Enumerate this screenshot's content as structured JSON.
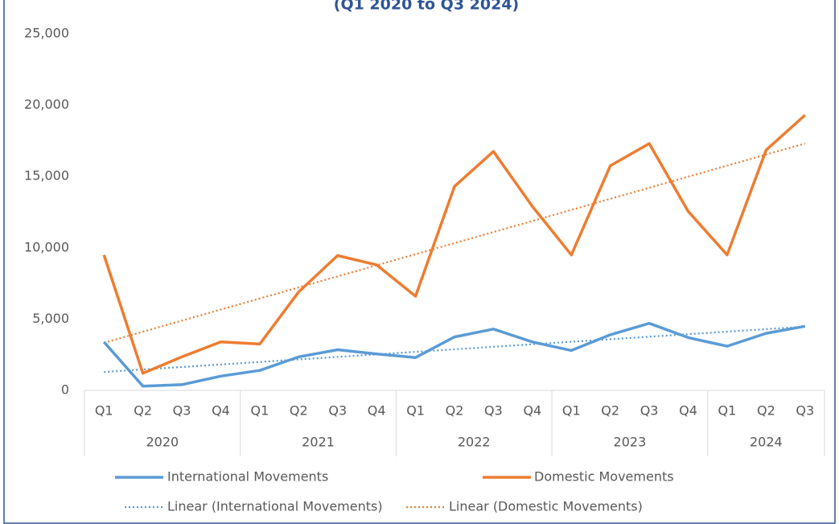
{
  "chart_data": {
    "type": "line",
    "title": "(Q1 2020 to Q3 2024)",
    "categories": [
      "Q1",
      "Q2",
      "Q3",
      "Q4",
      "Q1",
      "Q2",
      "Q3",
      "Q4",
      "Q1",
      "Q2",
      "Q3",
      "Q4",
      "Q1",
      "Q2",
      "Q3",
      "Q4",
      "Q1",
      "Q2",
      "Q3"
    ],
    "groups": [
      {
        "label": "2020",
        "span": 4
      },
      {
        "label": "2021",
        "span": 4
      },
      {
        "label": "2022",
        "span": 4
      },
      {
        "label": "2023",
        "span": 4
      },
      {
        "label": "2024",
        "span": 3
      }
    ],
    "series": [
      {
        "name": "International Movements",
        "color": "#5b9bd5",
        "values": [
          3400,
          300,
          400,
          1000,
          1400,
          2350,
          2850,
          2550,
          2300,
          3750,
          4300,
          3400,
          2800,
          3900,
          4700,
          3700,
          3100,
          4000,
          4500
        ],
        "trendline": {
          "name": "Linear (International Movements)",
          "style": "dotted"
        }
      },
      {
        "name": "Domestic Movements",
        "color": "#ed7d31",
        "values": [
          9500,
          1200,
          2350,
          3400,
          3250,
          6900,
          9450,
          8800,
          6600,
          14300,
          16750,
          12900,
          9500,
          15750,
          17300,
          12550,
          9500,
          16850,
          19300
        ],
        "trendline": {
          "name": "Linear (Domestic Movements)",
          "style": "dotted"
        }
      }
    ],
    "ylim": [
      0,
      25000
    ],
    "yticks": [
      {
        "value": 0,
        "label": "0"
      },
      {
        "value": 5000,
        "label": "5,000"
      },
      {
        "value": 10000,
        "label": "10,000"
      },
      {
        "value": 15000,
        "label": "15,000"
      },
      {
        "value": 20000,
        "label": "20,000"
      },
      {
        "value": 25000,
        "label": "25,000"
      }
    ],
    "grid": false,
    "legend": "bottom"
  }
}
